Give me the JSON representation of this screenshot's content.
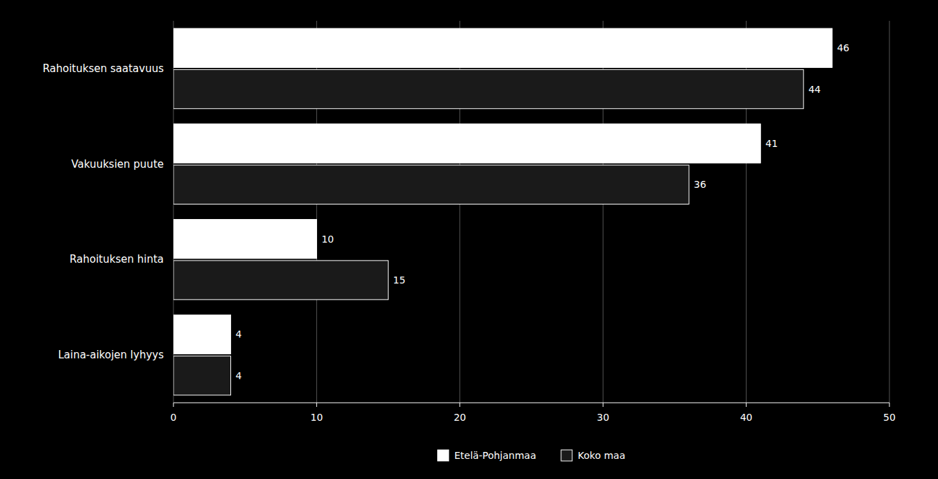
{
  "chart_data": {
    "type": "bar",
    "orientation": "horizontal",
    "categories": [
      "Rahoituksen saatavuus",
      "Vakuuksien puute",
      "Rahoituksen hinta",
      "Laina-aikojen lyhyys"
    ],
    "series": [
      {
        "name": "Etelä-Pohjanmaa",
        "color": "#ffffff",
        "values": [
          46,
          41,
          10,
          4
        ]
      },
      {
        "name": "Koko maa",
        "color": "#1a1a1a",
        "values": [
          44,
          36,
          15,
          4
        ]
      }
    ],
    "xlim": [
      0,
      50
    ],
    "xticks": [
      0,
      10,
      20,
      30,
      40,
      50
    ],
    "grid": true,
    "data_labels": true,
    "legend": "bottom"
  }
}
